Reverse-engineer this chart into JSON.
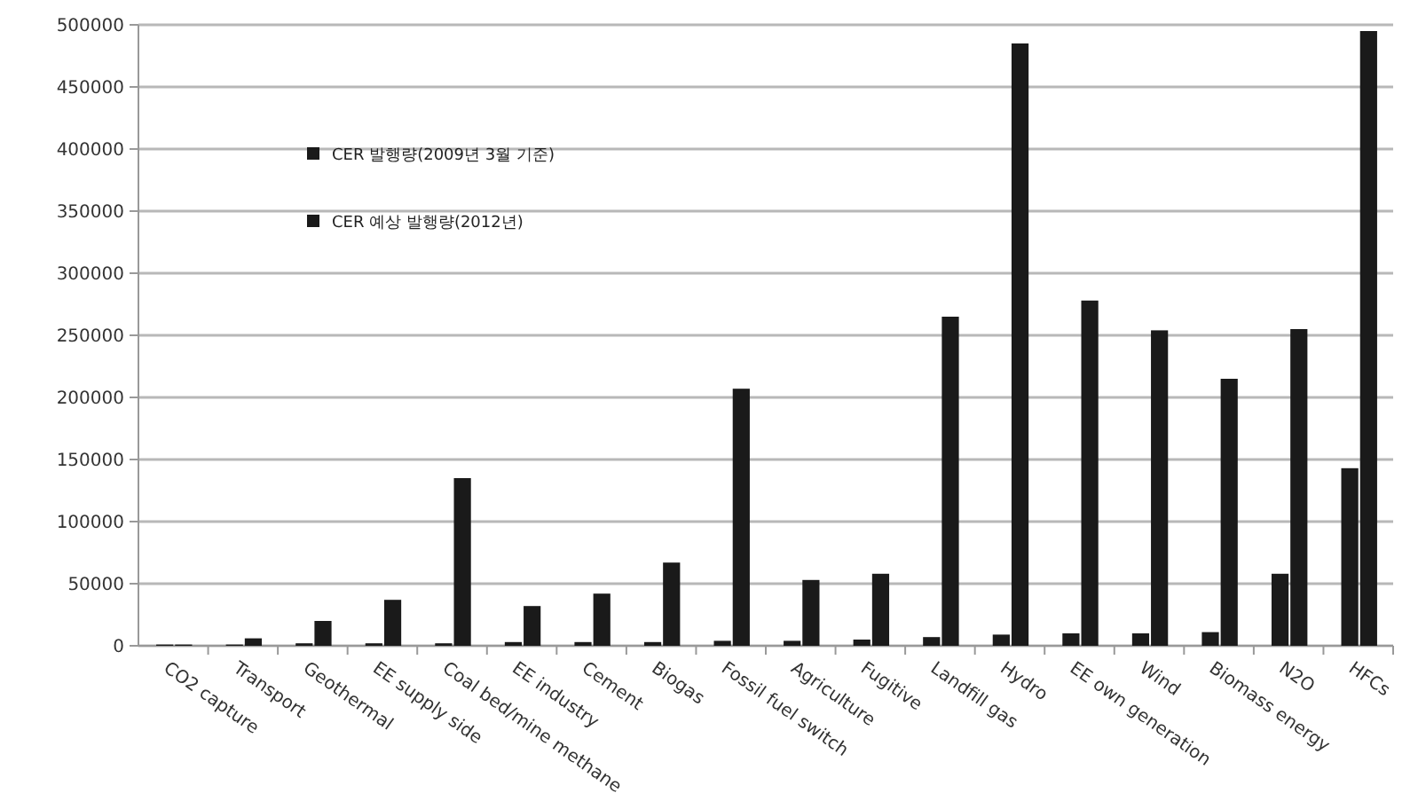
{
  "chart_data": {
    "type": "bar",
    "categories": [
      "CO2 capture",
      "Transport",
      "Geothermal",
      "EE supply side",
      "Coal bed/mine methane",
      "EE industry",
      "Cement",
      "Biogas",
      "Fossil fuel switch",
      "Agriculture",
      "Fugitive",
      "Landfill gas",
      "Hydro",
      "EE own generation",
      "Wind",
      "Biomass energy",
      "N2O",
      "HFCs"
    ],
    "series": [
      {
        "name": "CER 발행량(2009년 3월 기준)",
        "color": "#1a1a1a",
        "values": [
          1000,
          1000,
          2000,
          2000,
          2000,
          3000,
          3000,
          3000,
          4000,
          4000,
          5000,
          7000,
          9000,
          10000,
          10000,
          11000,
          58000,
          143000
        ]
      },
      {
        "name": "CER 예상 발행량(2012년)",
        "color": "#1a1a1a",
        "values": [
          1000,
          6000,
          20000,
          37000,
          135000,
          32000,
          42000,
          67000,
          207000,
          53000,
          58000,
          265000,
          485000,
          278000,
          254000,
          215000,
          255000,
          495000
        ]
      }
    ],
    "ylim": [
      0,
      500000
    ],
    "yticks": [
      0,
      50000,
      100000,
      150000,
      200000,
      250000,
      300000,
      350000,
      400000,
      450000,
      500000
    ],
    "grid": "y",
    "legend": "top left"
  }
}
